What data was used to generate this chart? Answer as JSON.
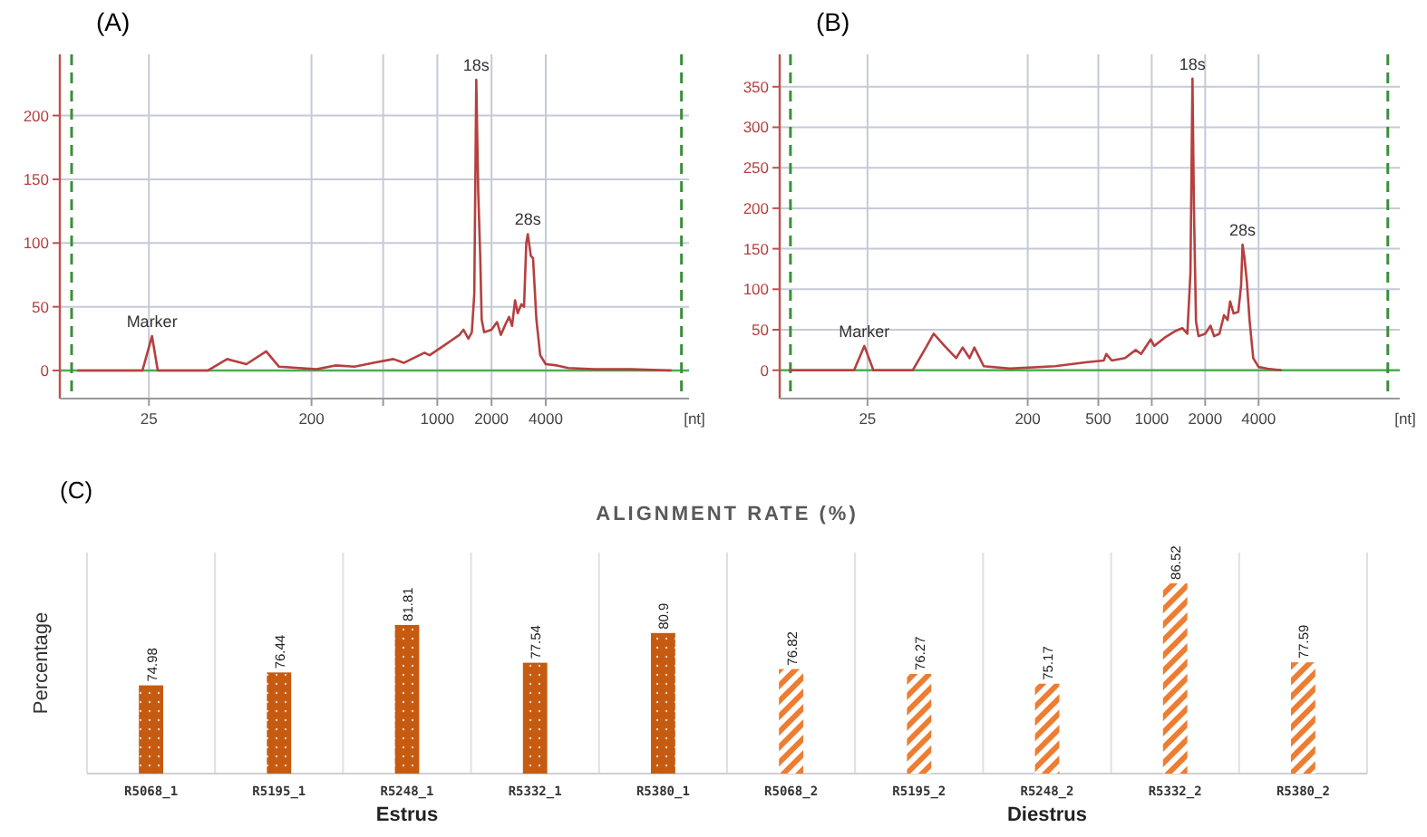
{
  "chart_data": [
    {
      "type": "line",
      "title": "(A)",
      "xlabel": "[nt]",
      "log": "x",
      "xlim": [
        8,
        25000
      ],
      "ylim": [
        -22,
        248
      ],
      "xticks": [
        25,
        200,
        {
          "value": 500,
          "label": null
        },
        1000,
        2000,
        4000
      ],
      "yticks": [
        0,
        50,
        100,
        150,
        200
      ],
      "grid": true,
      "ref_lines": [
        {
          "axis": "y",
          "value": 0,
          "color": "#4caf50",
          "line_style": "solid"
        },
        {
          "axis": "x",
          "value": 9.3,
          "color": "#3a8f3a",
          "line_style": "dashed"
        },
        {
          "axis": "x",
          "value": 22700,
          "color": "#3a8f3a",
          "line_style": "dashed"
        }
      ],
      "annotations": [
        {
          "text": "Marker",
          "x": 26,
          "y": 27
        },
        {
          "text": "18s",
          "x": 1645,
          "y": 228
        },
        {
          "text": "28s",
          "x": 3180,
          "y": 107
        }
      ],
      "series": [
        {
          "color": "#b5403f",
          "x": [
            10,
            23,
            26,
            28,
            53,
            68,
            87,
            112,
            132,
            213,
            271,
            347,
            442,
            570,
            651,
            848,
            906,
            1100,
            1208,
            1328,
            1397,
            1487,
            1554,
            1604,
            1645,
            1687,
            1730,
            1763,
            1820,
            2000,
            2146,
            2253,
            2421,
            2504,
            2601,
            2702,
            2795,
            2932,
            3031,
            3119,
            3180,
            3304,
            3401,
            3550,
            3726,
            4000,
            4618,
            5330,
            7450,
            12000,
            20000
          ],
          "values": [
            0,
            0,
            27,
            0,
            0,
            9,
            5,
            15,
            3,
            1,
            4,
            3,
            6,
            9,
            6,
            14,
            12,
            20,
            24,
            28,
            32,
            25,
            30,
            60,
            228,
            140,
            90,
            40,
            30,
            32,
            38,
            28,
            38,
            42,
            35,
            55,
            45,
            52,
            50,
            100,
            107,
            90,
            88,
            40,
            12,
            5,
            4,
            2,
            1,
            1,
            0
          ]
        }
      ]
    },
    {
      "type": "line",
      "title": "(B)",
      "xlabel": "[nt]",
      "log": "x",
      "xlim": [
        8,
        25000
      ],
      "ylim": [
        -35,
        390
      ],
      "xticks": [
        25,
        200,
        500,
        1000,
        2000,
        4000
      ],
      "yticks": [
        0,
        50,
        100,
        150,
        200,
        250,
        300,
        350
      ],
      "grid": true,
      "ref_lines": [
        {
          "axis": "y",
          "value": 0,
          "color": "#4caf50",
          "line_style": "solid"
        },
        {
          "axis": "x",
          "value": 9.2,
          "color": "#3a8f3a",
          "line_style": "dashed"
        },
        {
          "axis": "x",
          "value": 21400,
          "color": "#3a8f3a",
          "line_style": "dashed"
        }
      ],
      "annotations": [
        {
          "text": "Marker",
          "x": 24,
          "y": 30
        },
        {
          "text": "18s",
          "x": 1696,
          "y": 360
        },
        {
          "text": "28s",
          "x": 3249,
          "y": 155
        }
      ],
      "series": [
        {
          "color": "#b5403f",
          "x": [
            9,
            21,
            24,
            27,
            45,
            54,
            59,
            68,
            79,
            86,
            94,
            100,
            113,
            159,
            285,
            434,
            536,
            555,
            595,
            707,
            812,
            871,
            986,
            1033,
            1179,
            1346,
            1486,
            1587,
            1652,
            1696,
            1729,
            1776,
            1835,
            2000,
            2144,
            2245,
            2405,
            2555,
            2676,
            2764,
            2894,
            3074,
            3189,
            3249,
            3325,
            3434,
            3564,
            3732,
            4000,
            4490,
            5400
          ],
          "values": [
            0,
            0,
            30,
            0,
            0,
            30,
            45,
            30,
            15,
            28,
            15,
            28,
            5,
            2,
            5,
            10,
            12,
            20,
            12,
            15,
            25,
            20,
            38,
            30,
            40,
            48,
            52,
            45,
            120,
            360,
            200,
            60,
            42,
            45,
            55,
            42,
            45,
            68,
            62,
            85,
            70,
            72,
            105,
            155,
            140,
            110,
            60,
            15,
            4,
            2,
            0
          ]
        }
      ]
    },
    {
      "type": "bar",
      "title": "ALIGNMENT RATE (%)",
      "ylabel": "Percentage",
      "annotations": [
        "(C)"
      ],
      "categories": [
        "R5068_1",
        "R5195_1",
        "R5248_1",
        "R5332_1",
        "R5380_1",
        "R5068_2",
        "R5195_2",
        "R5248_2",
        "R5332_2",
        "R5380_2"
      ],
      "ylim": [
        65,
        90
      ],
      "tick_labels": "x",
      "grid": "x",
      "data_labels": true,
      "series": [
        {
          "name": "Estrus",
          "color": "#c55a11",
          "values": [
            74.98,
            76.44,
            81.81,
            77.54,
            80.9,
            null,
            null,
            null,
            null,
            null
          ]
        },
        {
          "name": "Diestrus",
          "color": "#ed7d31",
          "values": [
            null,
            null,
            null,
            null,
            null,
            76.82,
            76.27,
            75.17,
            86.52,
            77.59
          ]
        }
      ]
    }
  ]
}
